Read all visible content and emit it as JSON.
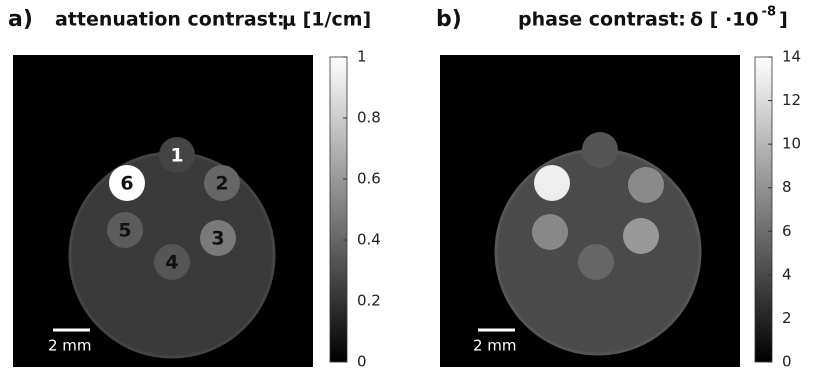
{
  "panels": [
    {
      "label": "a)",
      "title": "attenuation contrast:",
      "unit": [
        "μ [1/cm]"
      ],
      "colorbar": {
        "lim": [
          0,
          1
        ],
        "ticks": [
          0,
          0.2,
          0.4,
          0.6,
          0.8,
          1
        ]
      },
      "scale_bar": "2 mm",
      "inserts": [
        "1",
        "2",
        "3",
        "4",
        "5",
        "6"
      ]
    },
    {
      "label": "b)",
      "title": "phase contrast:",
      "unit": [
        "δ [ ·10",
        "-8",
        "]"
      ],
      "colorbar": {
        "lim": [
          0,
          14
        ],
        "ticks": [
          0,
          2,
          4,
          6,
          8,
          10,
          12,
          14
        ]
      },
      "scale_bar": "2 mm"
    }
  ]
}
